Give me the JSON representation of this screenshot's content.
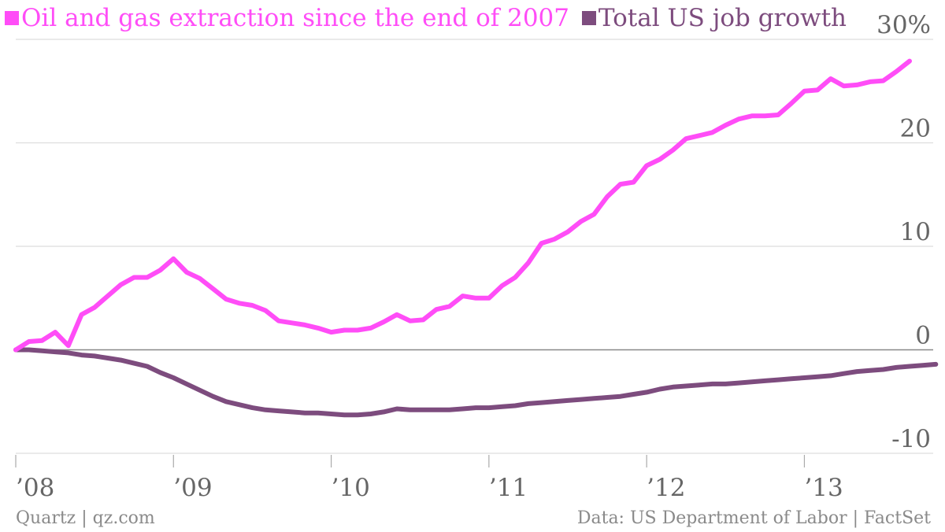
{
  "chart_data": {
    "type": "line",
    "series": [
      {
        "name": "Oil and gas extraction since the end of 2007",
        "color": "#ff4df7",
        "values": [
          0,
          0.8,
          0.9,
          1.7,
          0.4,
          3.4,
          4.1,
          5.2,
          6.3,
          7.0,
          7.0,
          7.7,
          8.8,
          7.5,
          6.9,
          5.9,
          4.9,
          4.5,
          4.3,
          3.8,
          2.8,
          2.6,
          2.4,
          2.1,
          1.7,
          1.9,
          1.9,
          2.1,
          2.7,
          3.4,
          2.8,
          2.9,
          3.9,
          4.2,
          5.2,
          5.0,
          5.0,
          6.2,
          7.0,
          8.4,
          10.3,
          10.7,
          11.4,
          12.4,
          13.1,
          14.8,
          16.0,
          16.2,
          17.8,
          18.4,
          19.3,
          20.4,
          20.7,
          21.0,
          21.7,
          22.3,
          22.6,
          22.6,
          22.7,
          23.8,
          25.0,
          25.1,
          26.2,
          25.5,
          25.6,
          25.9,
          26.0,
          26.9,
          27.9
        ]
      },
      {
        "name": "Total US job growth",
        "color": "#7d4c7e",
        "values": [
          0,
          0,
          -0.1,
          -0.2,
          -0.3,
          -0.5,
          -0.6,
          -0.8,
          -1.0,
          -1.3,
          -1.6,
          -2.2,
          -2.7,
          -3.3,
          -3.9,
          -4.5,
          -5.0,
          -5.3,
          -5.6,
          -5.8,
          -5.9,
          -6.0,
          -6.1,
          -6.1,
          -6.2,
          -6.3,
          -6.3,
          -6.2,
          -6.0,
          -5.7,
          -5.8,
          -5.8,
          -5.8,
          -5.8,
          -5.7,
          -5.6,
          -5.6,
          -5.5,
          -5.4,
          -5.2,
          -5.1,
          -5.0,
          -4.9,
          -4.8,
          -4.7,
          -4.6,
          -4.5,
          -4.3,
          -4.1,
          -3.8,
          -3.6,
          -3.5,
          -3.4,
          -3.3,
          -3.3,
          -3.2,
          -3.1,
          -3.0,
          -2.9,
          -2.8,
          -2.7,
          -2.6,
          -2.5,
          -2.3,
          -2.1,
          -2.0,
          -1.9,
          -1.7,
          -1.6,
          -1.5,
          -1.4
        ]
      }
    ],
    "x_ticks": [
      "’08",
      "’09",
      "’10",
      "’11",
      "’12",
      "’13"
    ],
    "y_ticks": [
      "30%",
      "20",
      "10",
      "0",
      "-10"
    ],
    "y_tick_values": [
      30,
      20,
      10,
      0,
      -10
    ],
    "ylim": [
      -10,
      30
    ],
    "x_start": "2008-01",
    "x_step": "month",
    "grid": true,
    "legend": "top-left",
    "title": "",
    "xlabel": "",
    "ylabel": ""
  },
  "footer": {
    "source_left": "Quartz | qz.com",
    "source_right": "Data: US Department of Labor | FactSet"
  },
  "colors": {
    "grid": "#dddddd",
    "zero_line": "#888888",
    "tick_text": "#666666",
    "axis_tick": "#aaaaaa"
  }
}
